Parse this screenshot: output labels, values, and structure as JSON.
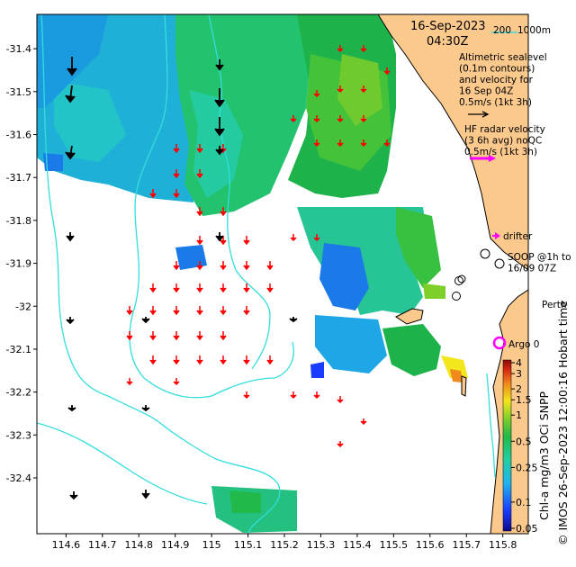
{
  "chart_data": {
    "type": "map",
    "date": "16-Sep-2023",
    "time": "04:30Z",
    "bathymetry_legend": {
      "contour_200": "200",
      "contour_1000": "1000m"
    },
    "altimetry_note": [
      "Altimetric sealevel",
      "(0.1m contours)",
      "and velocity for",
      "16 Sep 04Z",
      "0.5m/s (1kt 3h)"
    ],
    "hf_radar_note": [
      "HF radar velocity",
      "(3 6h avg) noQC",
      "0.5m/s (1kt 3h)"
    ],
    "drifter_label": "drifter",
    "soop_label": [
      "SOOP @1h to",
      "16/09 07Z"
    ],
    "city_label": "Perth",
    "argo_label": "Argo 0",
    "vertical_credit": "© IMOS 26-Sep-2023 12:00:16 Hobart time",
    "colorbar_label": "Chl-a mg/m3 OCi SNPP",
    "colorbar_ticks": [
      "4",
      "3",
      "2",
      "1.5",
      "1",
      "0.5",
      "0.25",
      "0.1",
      "0.05"
    ],
    "colorbar_range": [
      0.05,
      4
    ],
    "colors": {
      "land": "#fcc98d",
      "contour": "#33dddd",
      "arrow_hf": "#ff0000",
      "arrow_alt": "#000000",
      "drifter": "#ff00ff"
    },
    "x_ticks": [
      "114.6",
      "114.7",
      "114.8",
      "114.9",
      "115",
      "115.1",
      "115.2",
      "115.3",
      "115.4",
      "115.5",
      "115.6",
      "115.7",
      "115.8"
    ],
    "x_values": [
      114.6,
      114.7,
      114.8,
      114.9,
      115.0,
      115.1,
      115.2,
      115.3,
      115.4,
      115.5,
      115.6,
      115.7,
      115.8
    ],
    "y_ticks": [
      "-31.4",
      "-31.5",
      "-31.6",
      "-31.7",
      "-31.8",
      "-31.9",
      "-32",
      "-32.1",
      "-32.2",
      "-32.3",
      "-32.4"
    ],
    "y_values": [
      -31.4,
      -31.5,
      -31.6,
      -31.7,
      -31.8,
      -31.9,
      -32.0,
      -32.1,
      -32.2,
      -32.3,
      -32.4
    ],
    "lon_range": [
      114.52,
      115.87
    ],
    "lat_range": [
      -32.53,
      -31.32
    ]
  }
}
